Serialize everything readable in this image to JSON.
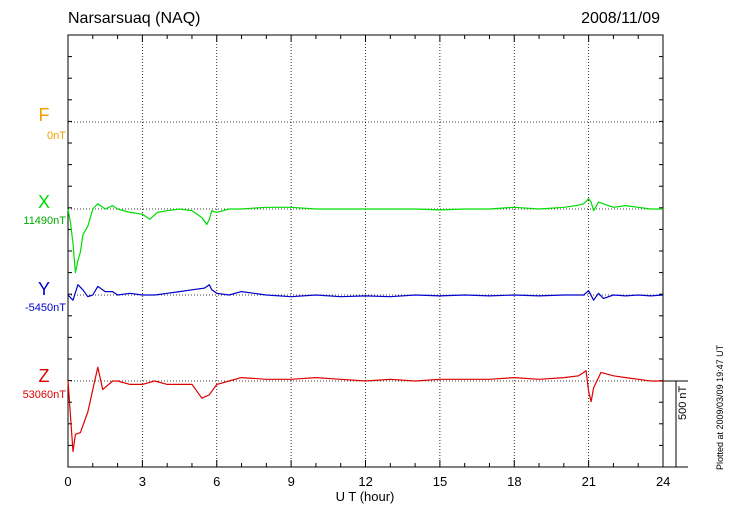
{
  "header": {
    "station": "Narsarsuaq (NAQ)",
    "date": "2008/11/09"
  },
  "components": [
    {
      "key": "F",
      "label": "F",
      "base": "0nT",
      "color": "#f0a000"
    },
    {
      "key": "X",
      "label": "X",
      "base": "11490nT",
      "color": "#00dd00"
    },
    {
      "key": "Y",
      "label": "Y",
      "base": "-5450nT",
      "color": "#0000cc"
    },
    {
      "key": "Z",
      "label": "Z",
      "base": "53060nT",
      "color": "#dd0000"
    }
  ],
  "scale_bar": "500 nT",
  "footnote": "Plotted at 2009/03/09 19:47 UT",
  "chart_data": {
    "type": "line",
    "title": "Narsarsuaq (NAQ)",
    "date": "2008/11/09",
    "xlabel": "U T (hour)",
    "xlim": [
      0,
      24
    ],
    "xticks": [
      "0",
      "3",
      "6",
      "9",
      "12",
      "15",
      "18",
      "21",
      "24"
    ],
    "units": "nT",
    "scale_nT": 500,
    "grid": true,
    "series": [
      {
        "name": "X",
        "base_nT": 11490,
        "color": "#00dd00",
        "x": [
          0,
          0.1,
          0.2,
          0.3,
          0.4,
          0.5,
          0.6,
          0.8,
          1.0,
          1.2,
          1.5,
          1.8,
          2.0,
          2.5,
          3.0,
          3.3,
          3.6,
          4.0,
          4.5,
          5.0,
          5.4,
          5.6,
          5.7,
          5.8,
          6.0,
          6.5,
          7.0,
          8.0,
          9.0,
          10.0,
          11.0,
          12.0,
          13.0,
          14.0,
          15.0,
          16.0,
          17.0,
          18.0,
          19.0,
          20.0,
          20.5,
          20.8,
          21.0,
          21.1,
          21.2,
          21.4,
          21.6,
          22.0,
          22.5,
          23.0,
          23.5,
          24.0
        ],
        "y": [
          0,
          -80,
          -200,
          -370,
          -300,
          -250,
          -150,
          -100,
          0,
          30,
          0,
          20,
          0,
          -20,
          -30,
          -60,
          -20,
          -10,
          0,
          -10,
          -50,
          -90,
          -60,
          -10,
          -20,
          0,
          0,
          10,
          10,
          0,
          0,
          0,
          0,
          0,
          -5,
          0,
          0,
          10,
          0,
          10,
          20,
          30,
          60,
          40,
          -10,
          40,
          30,
          10,
          20,
          10,
          0,
          0
        ]
      },
      {
        "name": "Y",
        "base_nT": -5450,
        "color": "#0000cc",
        "x": [
          0,
          0.2,
          0.4,
          0.6,
          0.8,
          1.0,
          1.2,
          1.5,
          1.8,
          2.0,
          2.5,
          3.0,
          3.5,
          4.0,
          4.5,
          5.0,
          5.5,
          5.7,
          5.8,
          6.0,
          6.5,
          7.0,
          8.0,
          9.0,
          10.0,
          11.0,
          12.0,
          13.0,
          14.0,
          15.0,
          16.0,
          17.0,
          18.0,
          19.0,
          20.0,
          20.8,
          21.0,
          21.2,
          21.4,
          21.6,
          22.0,
          22.5,
          23.0,
          23.5,
          24.0
        ],
        "y": [
          0,
          -30,
          60,
          30,
          -10,
          0,
          50,
          20,
          20,
          0,
          10,
          0,
          0,
          10,
          20,
          30,
          40,
          60,
          30,
          10,
          0,
          20,
          0,
          -10,
          0,
          -10,
          -5,
          -10,
          0,
          -5,
          0,
          -5,
          0,
          -5,
          0,
          0,
          25,
          -30,
          10,
          -20,
          0,
          -5,
          0,
          -5,
          0
        ]
      },
      {
        "name": "Z",
        "base_nT": 53060,
        "color": "#dd0000",
        "x": [
          0,
          0.2,
          0.3,
          0.5,
          0.8,
          1.0,
          1.2,
          1.4,
          1.8,
          2.0,
          2.5,
          3.0,
          3.5,
          4.0,
          4.5,
          5.0,
          5.4,
          5.7,
          6.0,
          6.5,
          7.0,
          8.0,
          9.0,
          10.0,
          11.0,
          12.0,
          13.0,
          14.0,
          15.0,
          16.0,
          17.0,
          18.0,
          19.0,
          20.0,
          20.6,
          20.9,
          21.0,
          21.1,
          21.2,
          21.5,
          22.0,
          22.5,
          23.0,
          23.5,
          24.0
        ],
        "y": [
          0,
          -410,
          -310,
          -300,
          -180,
          -50,
          80,
          -50,
          0,
          0,
          -20,
          -20,
          0,
          -20,
          -20,
          -20,
          -100,
          -80,
          -20,
          0,
          20,
          10,
          10,
          20,
          10,
          0,
          10,
          0,
          10,
          10,
          10,
          20,
          10,
          20,
          30,
          60,
          -60,
          -120,
          -40,
          50,
          30,
          20,
          10,
          0,
          0
        ]
      }
    ]
  }
}
